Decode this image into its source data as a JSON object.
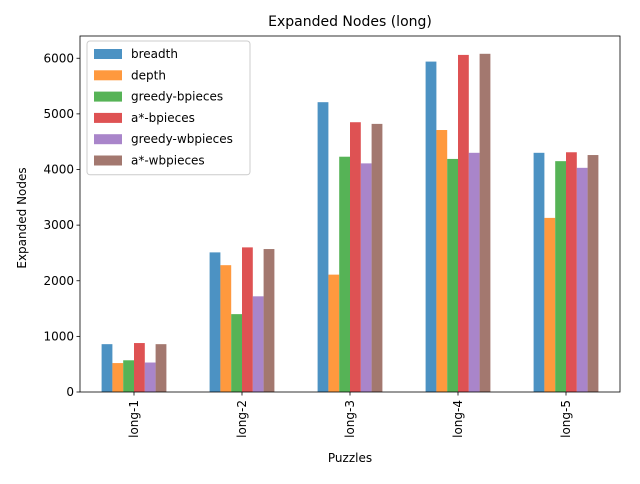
{
  "chart_data": {
    "type": "bar",
    "title": "Expanded Nodes (long)",
    "xlabel": "Puzzles",
    "ylabel": "Expanded Nodes",
    "categories": [
      "long-1",
      "long-2",
      "long-3",
      "long-4",
      "long-5"
    ],
    "ylim": [
      0,
      6400
    ],
    "yticks": [
      0,
      1000,
      2000,
      3000,
      4000,
      5000,
      6000
    ],
    "grid": false,
    "legend_position": "upper-left",
    "series": [
      {
        "name": "breadth",
        "color": "#1f77b4",
        "values": [
          860,
          2510,
          5210,
          5940,
          4300
        ]
      },
      {
        "name": "depth",
        "color": "#ff7f0e",
        "values": [
          520,
          2280,
          2110,
          4710,
          3130
        ]
      },
      {
        "name": "greedy-bpieces",
        "color": "#2ca02c",
        "values": [
          570,
          1400,
          4230,
          4190,
          4150
        ]
      },
      {
        "name": "a*-bpieces",
        "color": "#d62728",
        "values": [
          880,
          2600,
          4850,
          6060,
          4310
        ]
      },
      {
        "name": "greedy-wbpieces",
        "color": "#9467bd",
        "values": [
          530,
          1720,
          4110,
          4300,
          4030
        ]
      },
      {
        "name": "a*-wbpieces",
        "color": "#8c564b",
        "values": [
          860,
          2570,
          4820,
          6080,
          4260
        ]
      }
    ]
  }
}
